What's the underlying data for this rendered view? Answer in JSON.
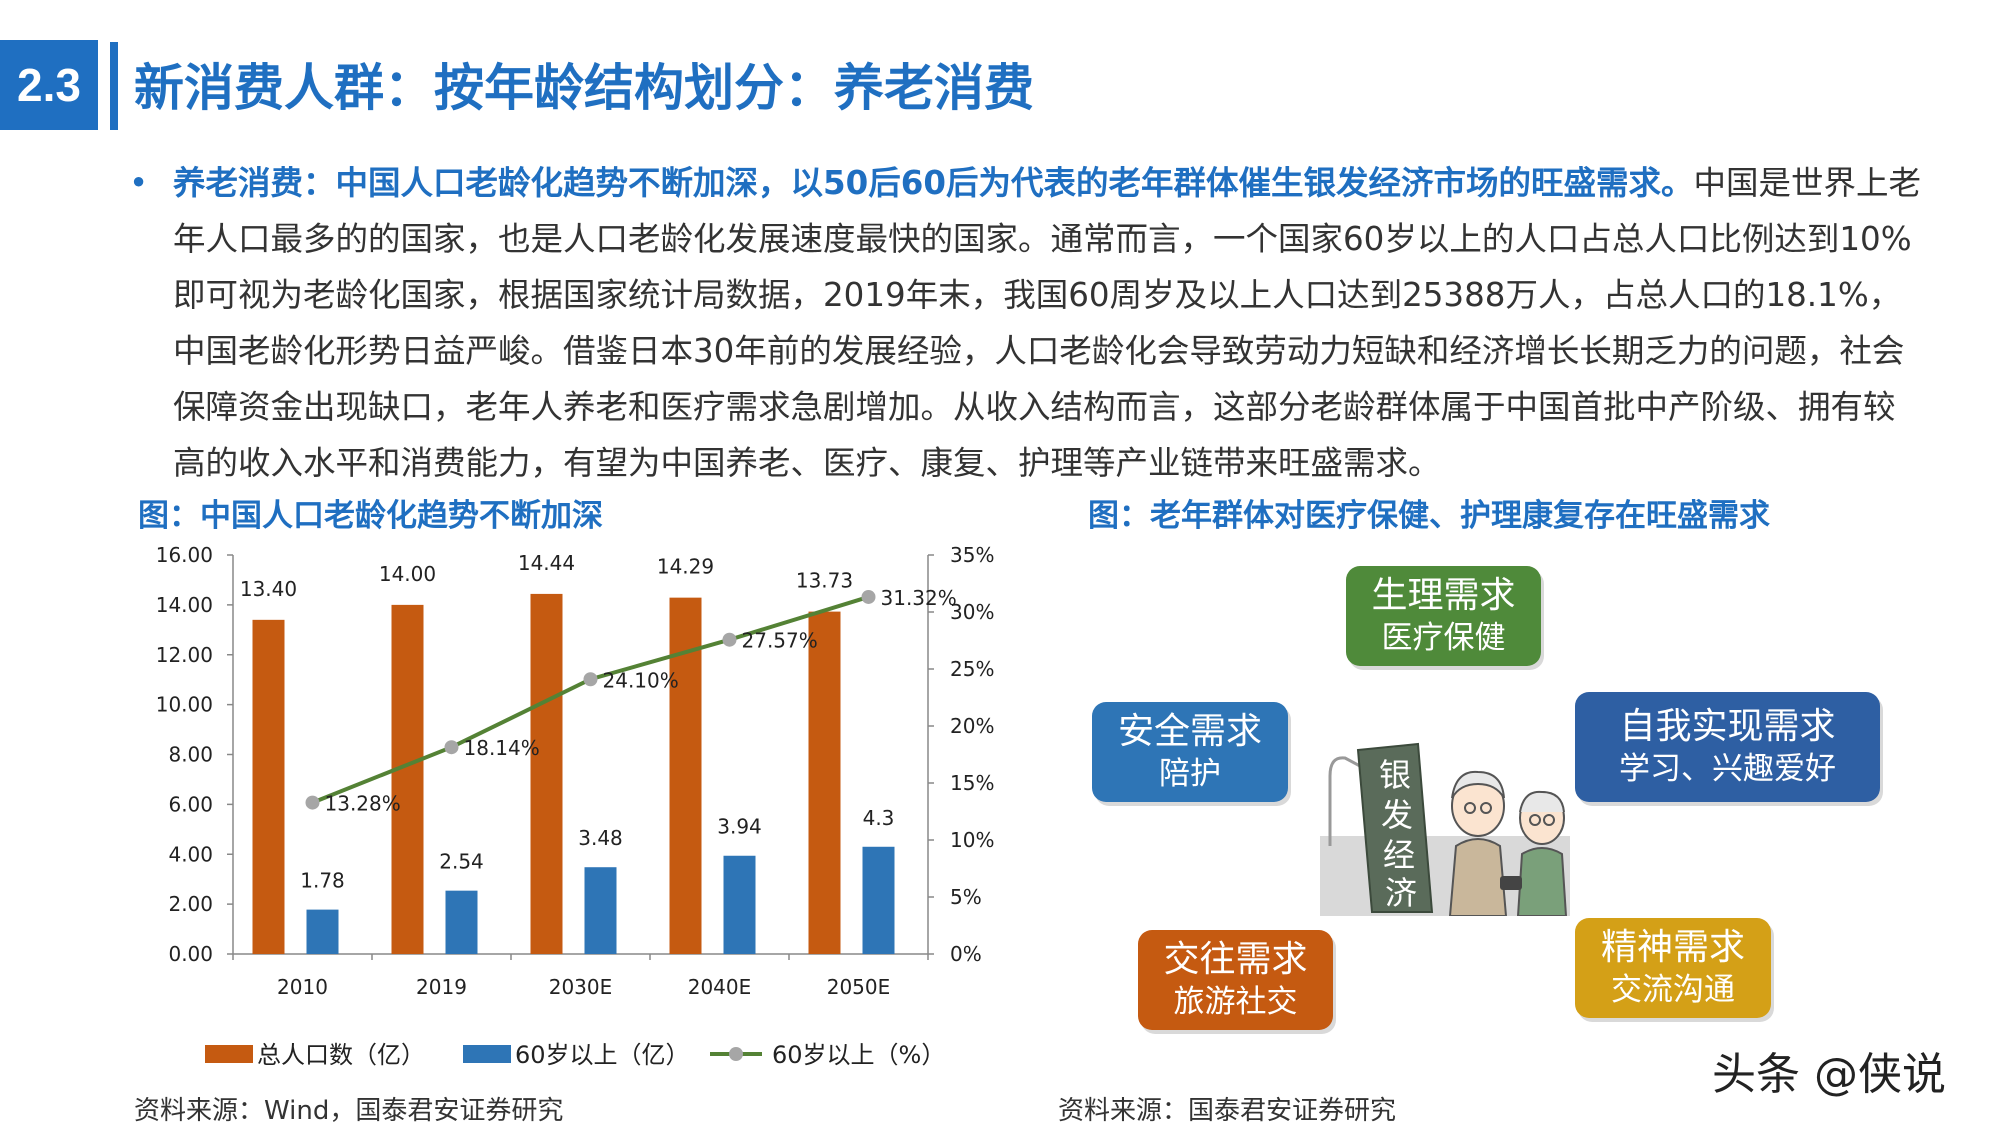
{
  "header": {
    "section_number": "2.3",
    "title": "新消费人群：按年龄结构划分：养老消费"
  },
  "bullet": {
    "lead": "养老消费：中国人口老龄化趋势不断加深，以50后60后为代表的老年群体催生银发经济市场的旺盛需求。",
    "body": "中国是世界上老年人口最多的的国家，也是人口老龄化发展速度最快的国家。通常而言，一个国家60岁以上的人口占总人口比例达到10%即可视为老龄化国家，根据国家统计局数据，2019年末，我国60周岁及以上人口达到25388万人，占总人口的18.1%，中国老龄化形势日益严峻。借鉴日本30年前的发展经验，人口老龄化会导致劳动力短缺和经济增长长期乏力的问题，社会保障资金出现缺口，老年人养老和医疗需求急剧增加。从收入结构而言，这部分老龄群体属于中国首批中产阶级、拥有较高的收入水平和消费能力，有望为中国养老、医疗、康复、护理等产业链带来旺盛需求。"
  },
  "left_caption": "图：中国人口老龄化趋势不断加深",
  "right_caption": "图：老年群体对医疗保健、护理康复存在旺盛需求",
  "left_source": "资料来源：Wind，国泰君安证券研究",
  "right_source": "资料来源：国泰君安证券研究",
  "watermark": "头条 @侠说",
  "chart_data": {
    "type": "bar",
    "categories": [
      "2010",
      "2019",
      "2030E",
      "2040E",
      "2050E"
    ],
    "series": [
      {
        "name": "总人口数（亿）",
        "type": "bar",
        "axis": "left",
        "color": "#c55a11",
        "values": [
          13.4,
          14.0,
          14.44,
          14.29,
          13.73
        ],
        "labels": [
          "13.40",
          "14.00",
          "14.44",
          "14.29",
          "13.73"
        ]
      },
      {
        "name": "60岁以上（亿）",
        "type": "bar",
        "axis": "left",
        "color": "#2e75b6",
        "values": [
          1.78,
          2.54,
          3.48,
          3.94,
          4.3
        ],
        "labels": [
          "1.78",
          "2.54",
          "3.48",
          "3.94",
          "4.3"
        ]
      },
      {
        "name": "60岁以上（%）",
        "type": "line",
        "axis": "right",
        "color": "#548235",
        "values": [
          13.28,
          18.14,
          24.1,
          27.57,
          31.32
        ],
        "labels": [
          "13.28%",
          "18.14%",
          "24.10%",
          "27.57%",
          "31.32%"
        ]
      }
    ],
    "ylim": [
      0,
      16
    ],
    "yticks": [
      "0.00",
      "2.00",
      "4.00",
      "6.00",
      "8.00",
      "10.00",
      "12.00",
      "14.00",
      "16.00"
    ],
    "y2lim": [
      0,
      35
    ],
    "y2ticks": [
      "0%",
      "5%",
      "10%",
      "15%",
      "20%",
      "25%",
      "30%",
      "35%"
    ],
    "legend_position": "bottom",
    "grid": false
  },
  "needs": [
    {
      "id": "physiological",
      "title": "生理需求",
      "subtitle": "医疗保健",
      "color": "#4f8a3a"
    },
    {
      "id": "safety",
      "title": "安全需求",
      "subtitle": "陪护",
      "color": "#2e75b6"
    },
    {
      "id": "self",
      "title": "自我实现需求",
      "subtitle": "学习、兴趣爱好",
      "color": "#2e5fa3"
    },
    {
      "id": "social",
      "title": "交往需求",
      "subtitle": "旅游社交",
      "color": "#c55a11"
    },
    {
      "id": "spiritual",
      "title": "精神需求",
      "subtitle": "交流沟通",
      "color": "#d4a017"
    }
  ],
  "illustration": {
    "sign_text": "银发经济"
  }
}
